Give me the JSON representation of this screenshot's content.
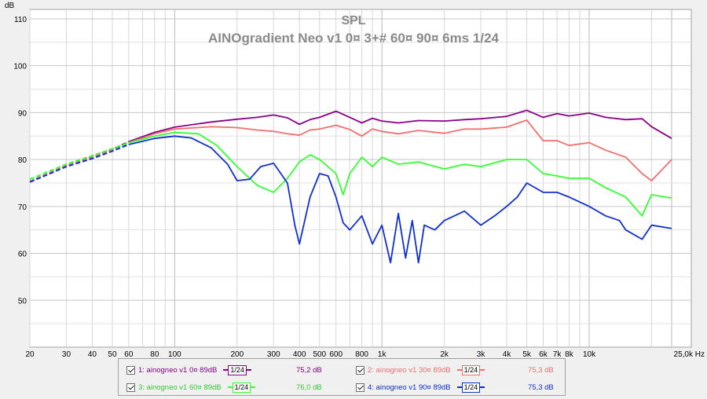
{
  "chart_data": {
    "type": "line",
    "title": "SPL",
    "subtitle": "AINOgradient Neo v1 0¤ 3+# 60¤ 90¤ 6ms 1/24",
    "ylabel": "dB",
    "xlabel": "",
    "x_scale": "log",
    "xlim": [
      20,
      25000
    ],
    "ylim": [
      40,
      112
    ],
    "grid": true,
    "y_ticks": [
      "110",
      "100",
      "90",
      "80",
      "70",
      "60",
      "50"
    ],
    "y_tick_values": [
      110,
      100,
      90,
      80,
      70,
      60,
      50
    ],
    "x_ticks": [
      "20",
      "30",
      "40",
      "50",
      "60",
      "80",
      "100",
      "200",
      "300",
      "400",
      "500",
      "600",
      "800",
      "1k",
      "2k",
      "3k",
      "4k",
      "5k",
      "6k",
      "7k",
      "8k",
      "10k",
      "25,0k Hz"
    ],
    "x_tick_values": [
      20,
      30,
      40,
      50,
      60,
      80,
      100,
      200,
      300,
      400,
      500,
      600,
      800,
      1000,
      2000,
      3000,
      4000,
      5000,
      6000,
      7000,
      8000,
      10000,
      25000
    ],
    "series": [
      {
        "name": "1: ainogneo v1 0¤ 89dB",
        "color": "#8b008b",
        "smoothing": "1/24",
        "spl": "75,2 dB",
        "x": [
          20,
          30,
          40,
          50,
          60,
          80,
          100,
          150,
          200,
          250,
          300,
          350,
          400,
          450,
          500,
          600,
          700,
          800,
          900,
          1000,
          1200,
          1500,
          2000,
          2500,
          3000,
          4000,
          5000,
          6000,
          7000,
          8000,
          10000,
          12000,
          15000,
          18000,
          20000,
          25000
        ],
        "y": [
          75.3,
          78.7,
          80.6,
          82.2,
          83.8,
          85.8,
          86.9,
          88.0,
          88.6,
          89.0,
          89.5,
          88.9,
          87.5,
          88.5,
          89.0,
          90.3,
          89.0,
          87.8,
          88.8,
          88.2,
          87.8,
          88.3,
          88.2,
          88.5,
          88.7,
          89.2,
          90.5,
          89.0,
          89.8,
          89.3,
          89.9,
          89.0,
          88.5,
          88.7,
          87.0,
          84.5
        ]
      },
      {
        "name": "2: ainogneo v1 30¤ 89dB",
        "color": "#f07070",
        "smoothing": "1/24",
        "spl": "75,3 dB",
        "x": [
          20,
          30,
          40,
          50,
          60,
          80,
          100,
          150,
          200,
          250,
          300,
          350,
          400,
          450,
          500,
          600,
          700,
          800,
          900,
          1000,
          1200,
          1500,
          2000,
          2500,
          3000,
          4000,
          5000,
          6000,
          7000,
          8000,
          10000,
          12000,
          15000,
          18000,
          20000,
          25000
        ],
        "y": [
          75.3,
          78.7,
          80.5,
          82.0,
          83.6,
          85.5,
          86.5,
          87.0,
          86.8,
          86.3,
          86.0,
          85.5,
          85.2,
          86.3,
          86.5,
          87.3,
          86.4,
          85.0,
          86.5,
          86.0,
          85.5,
          86.2,
          85.6,
          86.5,
          86.5,
          86.9,
          88.4,
          84.0,
          84.0,
          83.0,
          83.6,
          82.0,
          80.5,
          77.0,
          75.5,
          80.0
        ]
      },
      {
        "name": "3: ainogneo v1 60¤ 89dB",
        "color": "#33ff33",
        "smoothing": "1/24",
        "spl": "76,0 dB",
        "x": [
          20,
          30,
          40,
          50,
          60,
          80,
          100,
          130,
          160,
          200,
          250,
          300,
          350,
          400,
          450,
          500,
          600,
          650,
          700,
          800,
          900,
          1000,
          1200,
          1500,
          2000,
          2500,
          3000,
          4000,
          5000,
          6000,
          7000,
          8000,
          10000,
          12000,
          15000,
          18000,
          20000,
          25000
        ],
        "y": [
          75.8,
          79.0,
          80.8,
          82.3,
          83.6,
          85.0,
          85.8,
          85.5,
          83.0,
          78.5,
          74.5,
          73.0,
          76.0,
          79.5,
          81.0,
          80.0,
          77.0,
          72.5,
          77.0,
          80.5,
          78.5,
          80.5,
          79.0,
          79.5,
          78.0,
          79.0,
          78.5,
          80.0,
          80.0,
          77.0,
          76.5,
          76.0,
          76.0,
          74.0,
          72.0,
          68.0,
          72.5,
          71.8
        ]
      },
      {
        "name": "4: ainogneo v1 90¤ 89dB",
        "color": "#1030d0",
        "smoothing": "1/24",
        "spl": "75,3 dB",
        "x": [
          20,
          30,
          40,
          50,
          60,
          80,
          100,
          120,
          150,
          180,
          200,
          230,
          260,
          300,
          350,
          380,
          400,
          450,
          500,
          550,
          600,
          650,
          700,
          800,
          900,
          1000,
          1100,
          1200,
          1300,
          1400,
          1500,
          1600,
          1800,
          2000,
          2500,
          3000,
          3500,
          4000,
          4500,
          5000,
          6000,
          7000,
          8000,
          10000,
          12000,
          14000,
          15000,
          18000,
          20000,
          25000
        ],
        "y": [
          75.2,
          78.5,
          80.2,
          81.8,
          83.2,
          84.5,
          85.0,
          84.6,
          82.5,
          79.0,
          75.5,
          75.8,
          78.5,
          79.2,
          75.0,
          66.0,
          62.0,
          72.0,
          77.0,
          76.5,
          72.0,
          66.5,
          65.0,
          68.0,
          62.0,
          66.0,
          58.0,
          68.5,
          59.0,
          67.0,
          58.0,
          66.0,
          65.0,
          67.0,
          69.0,
          66.0,
          68.0,
          70.0,
          72.0,
          75.0,
          73.0,
          73.0,
          72.0,
          70.0,
          68.0,
          67.0,
          65.0,
          63.0,
          66.0,
          65.3
        ]
      }
    ]
  }
}
